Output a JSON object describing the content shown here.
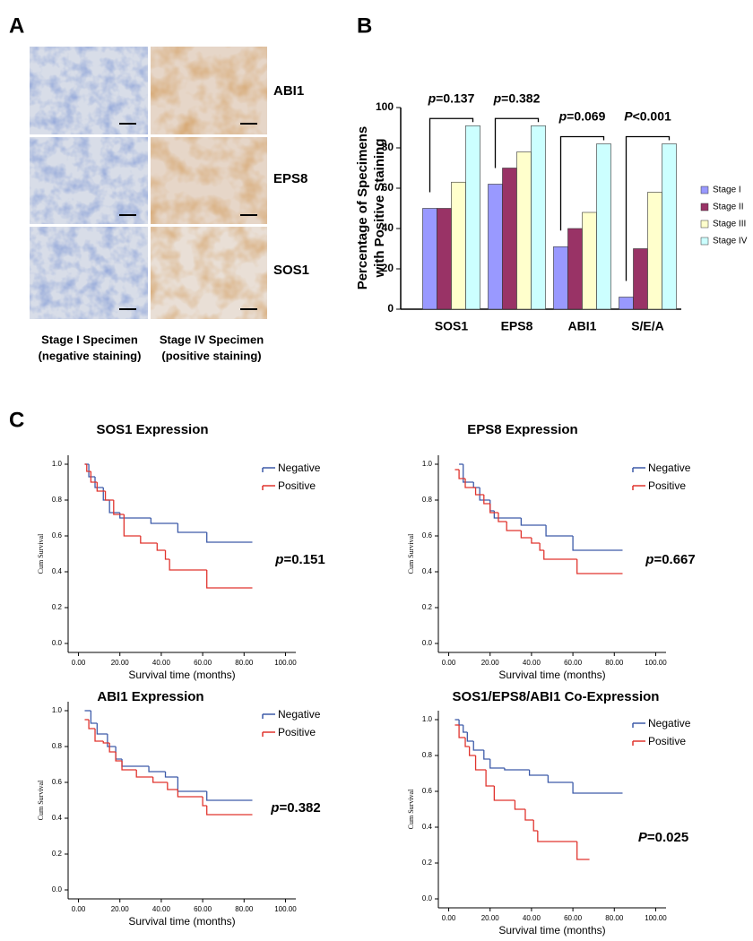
{
  "panel_labels": [
    "A",
    "B",
    "C"
  ],
  "histology": {
    "markers": [
      "ABI1",
      "EPS8",
      "SOS1"
    ],
    "captions": [
      [
        "Stage I Specimen",
        "(negative staining)"
      ],
      [
        "Stage IV Specimen",
        "(positive staining)"
      ]
    ]
  },
  "chart_data": [
    {
      "type": "bar",
      "categories": [
        "SOS1",
        "EPS8",
        "ABI1",
        "S/E/A"
      ],
      "series": [
        {
          "name": "Stage I",
          "color": "#9999ff",
          "values": [
            50,
            62,
            31,
            6
          ]
        },
        {
          "name": "Stage II",
          "color": "#993366",
          "values": [
            50,
            70,
            40,
            30
          ]
        },
        {
          "name": "Stage III",
          "color": "#ffffcc",
          "values": [
            63,
            78,
            48,
            58
          ]
        },
        {
          "name": "Stage IV",
          "color": "#ccffff",
          "values": [
            91,
            91,
            82,
            82
          ]
        }
      ],
      "ylabel": [
        "Percentage of Specimens",
        "with Positive Staining"
      ],
      "ylim": [
        0,
        100
      ],
      "yticks": [
        0,
        20,
        40,
        60,
        80,
        100
      ],
      "annotations": [
        {
          "symbol": "p",
          "text": "=0.137"
        },
        {
          "symbol": "p",
          "text": "=0.382"
        },
        {
          "symbol": "p",
          "text": "=0.069"
        },
        {
          "symbol": "P",
          "text": "<0.001"
        }
      ],
      "legend": "right"
    },
    {
      "type": "line",
      "step": true,
      "title": "SOS1 Expression",
      "xlabel": "Survival time (months)",
      "ylabel": "Cum Survival",
      "xlim": [
        -5,
        105
      ],
      "ylim": [
        -0.05,
        1.05
      ],
      "xticks": [
        {
          "value": 0,
          "label": "0.00"
        },
        {
          "value": 20,
          "label": "20.00"
        },
        {
          "value": 40,
          "label": "40.00"
        },
        {
          "value": 60,
          "label": "60.00"
        },
        {
          "value": 80,
          "label": "80.00"
        },
        {
          "value": 100,
          "label": "100.00"
        }
      ],
      "yticks": [
        {
          "value": 0,
          "label": "0.0"
        },
        0.2,
        0.4,
        0.6,
        0.8,
        {
          "value": 1,
          "label": "1.0"
        }
      ],
      "series": [
        {
          "name": "Negative",
          "color": "#3d5ba9",
          "x": [
            3,
            5,
            8,
            12,
            15,
            20,
            35,
            48,
            62,
            84
          ],
          "values": [
            1.0,
            0.93,
            0.87,
            0.8,
            0.73,
            0.7,
            0.67,
            0.62,
            0.565,
            0.565
          ]
        },
        {
          "name": "Positive",
          "color": "#e0342e",
          "x": [
            3,
            4,
            6,
            9,
            13,
            17,
            22,
            30,
            38,
            42,
            44,
            62,
            84
          ],
          "values": [
            1.0,
            0.96,
            0.9,
            0.85,
            0.8,
            0.72,
            0.6,
            0.56,
            0.52,
            0.47,
            0.41,
            0.31,
            0.31
          ]
        }
      ],
      "annotation": {
        "symbol": "p",
        "text": "=0.151"
      },
      "legend": "upper right"
    },
    {
      "type": "line",
      "step": true,
      "title": "EPS8 Expression",
      "xlabel": "Survival time (months)",
      "ylabel": "Cum Survival",
      "xlim": [
        -5,
        105
      ],
      "ylim": [
        -0.05,
        1.05
      ],
      "xticks": [
        {
          "value": 0,
          "label": "0.00"
        },
        {
          "value": 20,
          "label": "20.00"
        },
        {
          "value": 40,
          "label": "40.00"
        },
        {
          "value": 60,
          "label": "60.00"
        },
        {
          "value": 80,
          "label": "80.00"
        },
        {
          "value": 100,
          "label": "100.00"
        }
      ],
      "yticks": [
        {
          "value": 0,
          "label": "0.0"
        },
        0.2,
        0.4,
        0.6,
        0.8,
        {
          "value": 1,
          "label": "1.0"
        }
      ],
      "series": [
        {
          "name": "Negative",
          "color": "#3d5ba9",
          "x": [
            5,
            7,
            12,
            15,
            20,
            22,
            35,
            47,
            60,
            84
          ],
          "values": [
            1.0,
            0.9,
            0.87,
            0.8,
            0.74,
            0.7,
            0.66,
            0.6,
            0.52,
            0.52
          ]
        },
        {
          "name": "Positive",
          "color": "#e0342e",
          "x": [
            3,
            5,
            8,
            13,
            17,
            20,
            24,
            28,
            35,
            40,
            44,
            46,
            62,
            84
          ],
          "values": [
            0.97,
            0.92,
            0.87,
            0.83,
            0.78,
            0.73,
            0.68,
            0.63,
            0.59,
            0.56,
            0.52,
            0.47,
            0.39,
            0.39
          ]
        }
      ],
      "annotation": {
        "symbol": "p",
        "text": "=0.667"
      },
      "legend": "upper right"
    },
    {
      "type": "line",
      "step": true,
      "title": "ABI1 Expression",
      "xlabel": "Survival time (months)",
      "ylabel": "Cum Survival",
      "xlim": [
        -5,
        105
      ],
      "ylim": [
        -0.05,
        1.05
      ],
      "xticks": [
        {
          "value": 0,
          "label": "0.00"
        },
        {
          "value": 20,
          "label": "20.00"
        },
        {
          "value": 40,
          "label": "40.00"
        },
        {
          "value": 60,
          "label": "60.00"
        },
        {
          "value": 80,
          "label": "80.00"
        },
        {
          "value": 100,
          "label": "100.00"
        }
      ],
      "yticks": [
        {
          "value": 0,
          "label": "0.0"
        },
        0.2,
        0.4,
        0.6,
        0.8,
        {
          "value": 1,
          "label": "1.0"
        }
      ],
      "series": [
        {
          "name": "Negative",
          "color": "#3d5ba9",
          "x": [
            3,
            6,
            9,
            14,
            18,
            21,
            34,
            42,
            48,
            62,
            84
          ],
          "values": [
            1.0,
            0.93,
            0.87,
            0.8,
            0.73,
            0.69,
            0.66,
            0.63,
            0.55,
            0.5,
            0.5
          ]
        },
        {
          "name": "Positive",
          "color": "#e0342e",
          "x": [
            3,
            5,
            8,
            12,
            15,
            18,
            21,
            28,
            36,
            43,
            48,
            60,
            62,
            84
          ],
          "values": [
            0.95,
            0.9,
            0.83,
            0.82,
            0.77,
            0.72,
            0.67,
            0.63,
            0.6,
            0.56,
            0.52,
            0.47,
            0.42,
            0.42
          ]
        }
      ],
      "annotation": {
        "symbol": "p",
        "text": "=0.382"
      },
      "legend": "upper right"
    },
    {
      "type": "line",
      "step": true,
      "title": "SOS1/EPS8/ABI1 Co-Expression",
      "xlabel": "Survival time (months)",
      "ylabel": "Cum Survival",
      "xlim": [
        -5,
        105
      ],
      "ylim": [
        -0.05,
        1.05
      ],
      "xticks": [
        {
          "value": 0,
          "label": "0.00"
        },
        {
          "value": 20,
          "label": "20.00"
        },
        {
          "value": 40,
          "label": "40.00"
        },
        {
          "value": 60,
          "label": "60.00"
        },
        {
          "value": 80,
          "label": "80.00"
        },
        {
          "value": 100,
          "label": "100.00"
        }
      ],
      "yticks": [
        {
          "value": 0,
          "label": "0.0"
        },
        0.2,
        0.4,
        0.6,
        0.8,
        {
          "value": 1,
          "label": "1.0"
        }
      ],
      "series": [
        {
          "name": "Negative",
          "color": "#3d5ba9",
          "x": [
            3,
            5,
            7,
            9,
            12,
            17,
            20,
            27,
            39,
            48,
            60,
            84
          ],
          "values": [
            1.0,
            0.97,
            0.93,
            0.88,
            0.83,
            0.78,
            0.73,
            0.72,
            0.69,
            0.65,
            0.59,
            0.59
          ]
        },
        {
          "name": "Positive",
          "color": "#e0342e",
          "x": [
            3,
            5,
            8,
            10,
            13,
            18,
            22,
            32,
            37,
            41,
            43,
            62,
            68
          ],
          "values": [
            0.97,
            0.9,
            0.85,
            0.8,
            0.72,
            0.63,
            0.55,
            0.5,
            0.44,
            0.38,
            0.32,
            0.22,
            0.22
          ]
        }
      ],
      "annotation": {
        "symbol": "P",
        "text": "=0.025"
      },
      "legend": "upper right"
    }
  ]
}
